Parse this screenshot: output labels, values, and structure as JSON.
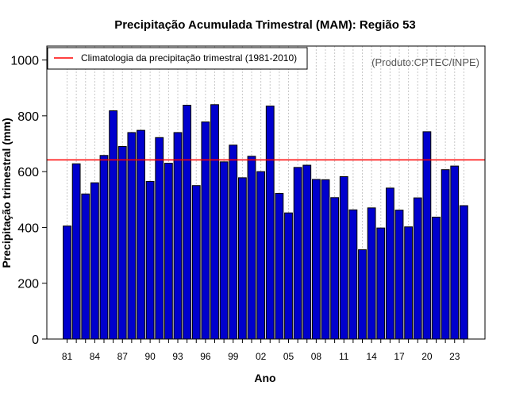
{
  "chart_data": {
    "type": "bar",
    "title": "Precipitação Acumulada Trimestral (MAM): Região 53",
    "xlabel": "Ano",
    "ylabel": "Precipitação trimestral (mm)",
    "source_note": "(Produto:CPTEC/INPE)",
    "ylim": [
      0,
      1050
    ],
    "yticks": [
      0,
      200,
      400,
      600,
      800,
      1000
    ],
    "categories": [
      "81",
      "82",
      "83",
      "84",
      "85",
      "86",
      "87",
      "88",
      "89",
      "90",
      "91",
      "92",
      "93",
      "94",
      "95",
      "96",
      "97",
      "98",
      "99",
      "00",
      "01",
      "02",
      "03",
      "04",
      "05",
      "06",
      "07",
      "08",
      "09",
      "10",
      "11",
      "12",
      "13",
      "14",
      "15",
      "16",
      "17",
      "18",
      "19",
      "20",
      "21",
      "22",
      "23",
      "24"
    ],
    "x_tick_labels": [
      "81",
      "84",
      "87",
      "90",
      "93",
      "96",
      "99",
      "02",
      "05",
      "08",
      "11",
      "14",
      "17",
      "20",
      "23"
    ],
    "values": [
      405,
      628,
      520,
      560,
      658,
      818,
      690,
      740,
      748,
      565,
      722,
      630,
      740,
      838,
      550,
      778,
      840,
      635,
      695,
      578,
      655,
      600,
      835,
      522,
      452,
      615,
      623,
      572,
      571,
      507,
      582,
      463,
      320,
      470,
      398,
      541,
      462,
      402,
      506,
      743,
      437,
      607,
      620,
      478
    ],
    "reference_line": {
      "value": 642,
      "label": "Climatologia da precipitação trimestral (1981-2010)",
      "color": "#ff0000"
    },
    "bar_color": "#0000cd",
    "grid": "vertical-dotted",
    "legend_position": "top-left"
  }
}
